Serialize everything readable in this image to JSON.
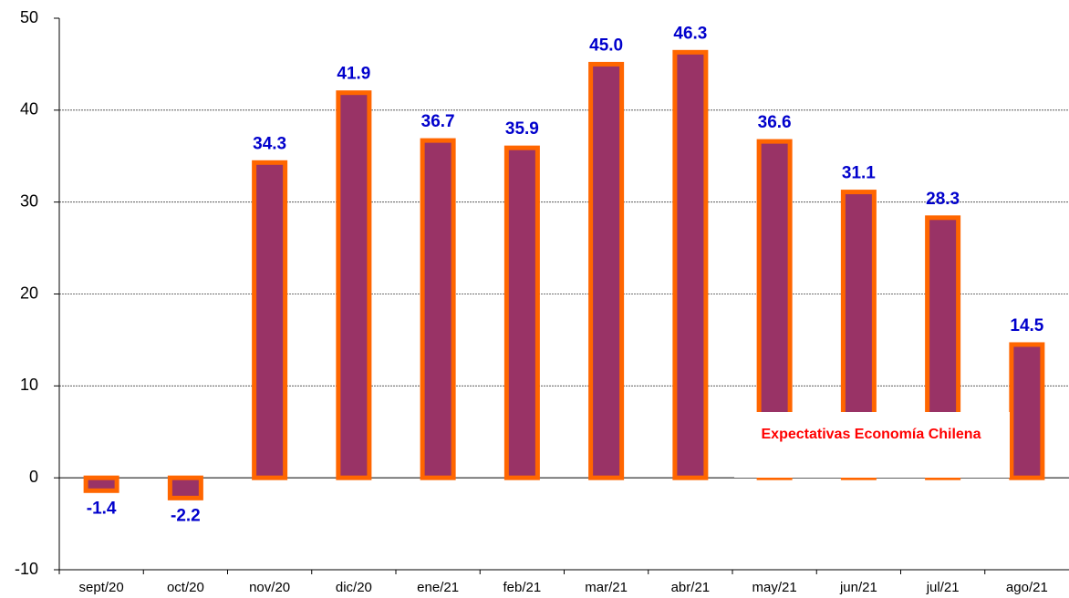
{
  "chart_data": {
    "type": "bar",
    "categories": [
      "sept/20",
      "oct/20",
      "nov/20",
      "dic/20",
      "ene/21",
      "feb/21",
      "mar/21",
      "abr/21",
      "may/21",
      "jun/21",
      "jul/21",
      "ago/21"
    ],
    "values": [
      -1.4,
      -2.2,
      34.3,
      41.9,
      36.7,
      35.9,
      45.0,
      46.3,
      36.6,
      31.1,
      28.3,
      14.5
    ],
    "value_labels": [
      "-1.4",
      "-2.2",
      "34.3",
      "41.9",
      "36.7",
      "35.9",
      "45.0",
      "46.3",
      "36.6",
      "31.1",
      "28.3",
      "14.5"
    ],
    "color": "#993366",
    "edge_color": "#ff6600",
    "label_color": "#0000cc",
    "ylim": [
      -10,
      50
    ],
    "yticks": [
      -10,
      0,
      10,
      20,
      30,
      40,
      50
    ],
    "grid": true,
    "annotation": "Expectativas Economía Chilena",
    "annotation_color": "#ff0000"
  }
}
